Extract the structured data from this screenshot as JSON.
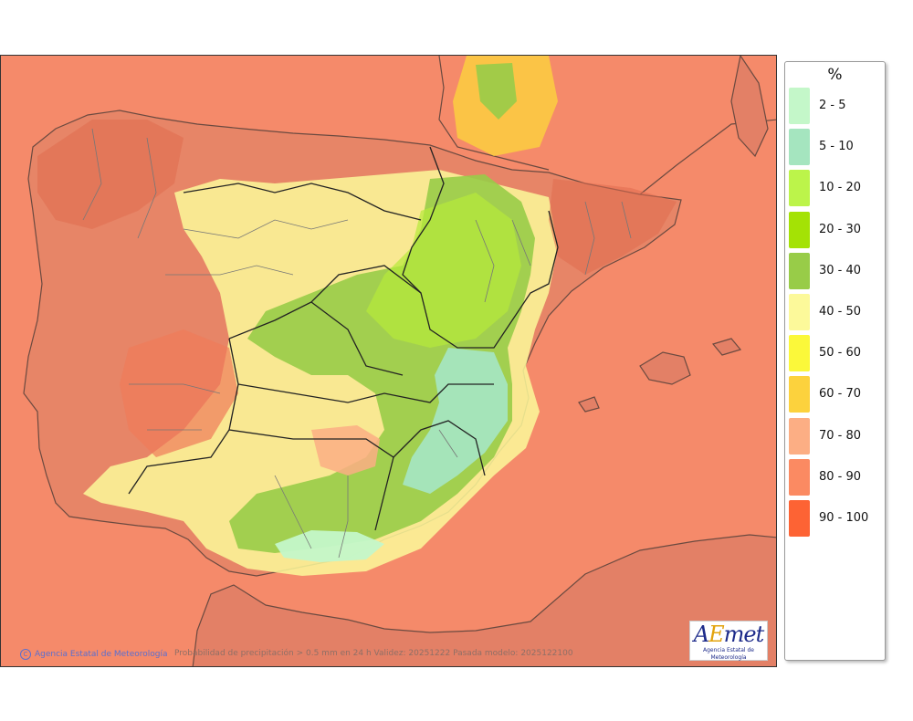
{
  "map": {
    "credit": "Agencia Estatal de Meteorología",
    "caption": "Probabilidad de precipitación > 0.5 mm en 24 h Validez: 20251222 Pasada modelo: 2025122100",
    "background_color": "#f58a6a",
    "land_color": "#e38066",
    "sea_color": "#f58a6a"
  },
  "logo": {
    "word_a": "A",
    "word_e": "E",
    "word_rest": "met",
    "subtitle": "Agencia Estatal de Meteorología"
  },
  "legend": {
    "unit": "%",
    "classes": [
      {
        "label": "2 - 5",
        "color": "#c4f7c9"
      },
      {
        "label": "5 - 10",
        "color": "#a5e5bf"
      },
      {
        "label": "10 - 20",
        "color": "#bcf44a"
      },
      {
        "label": "20 - 30",
        "color": "#a4e205"
      },
      {
        "label": "30 - 40",
        "color": "#98cc48"
      },
      {
        "label": "40 - 50",
        "color": "#fcf99a"
      },
      {
        "label": "50 - 60",
        "color": "#fbf83a"
      },
      {
        "label": "60 - 70",
        "color": "#fcd23d"
      },
      {
        "label": "70 - 80",
        "color": "#fcae84"
      },
      {
        "label": "80 - 90",
        "color": "#fb8a62"
      },
      {
        "label": "90 - 100",
        "color": "#fd6334"
      }
    ]
  }
}
